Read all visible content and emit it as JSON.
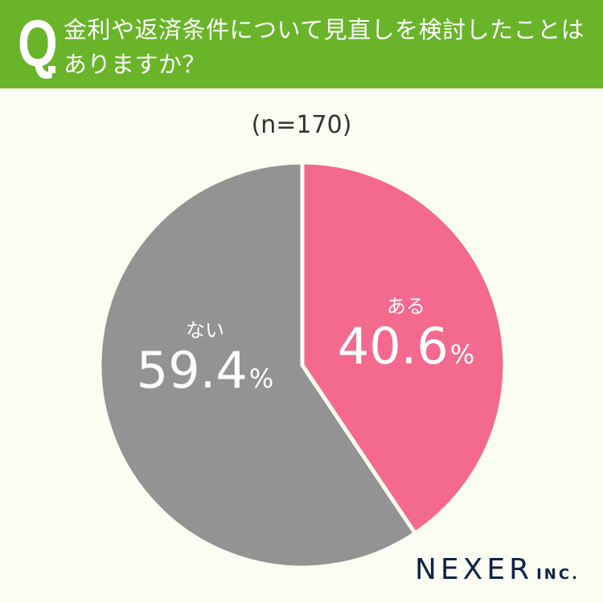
{
  "header": {
    "q_mark": "Q",
    "question": "金利や返済条件について見直しを検討したことはありますか？",
    "background_color": "#6ab42a"
  },
  "sample_label": "(n=170)",
  "slices": [
    {
      "category": "ある",
      "value": "40.6",
      "unit": "%",
      "color": "#f46a8e"
    },
    {
      "category": "ない",
      "value": "59.4",
      "unit": "%",
      "color": "#939393"
    }
  ],
  "logo": {
    "main": "NEXER",
    "sub": "INC."
  },
  "chart_data": {
    "type": "pie",
    "title": "金利や返済条件について見直しを検討したことはありますか？",
    "subtitle": "(n=170)",
    "categories": [
      "ある",
      "ない"
    ],
    "values": [
      40.6,
      59.4
    ],
    "unit": "%",
    "colors": [
      "#f46a8e",
      "#939393"
    ],
    "start_angle": "12 o'clock, clockwise",
    "legend": "none (inline labels)"
  }
}
